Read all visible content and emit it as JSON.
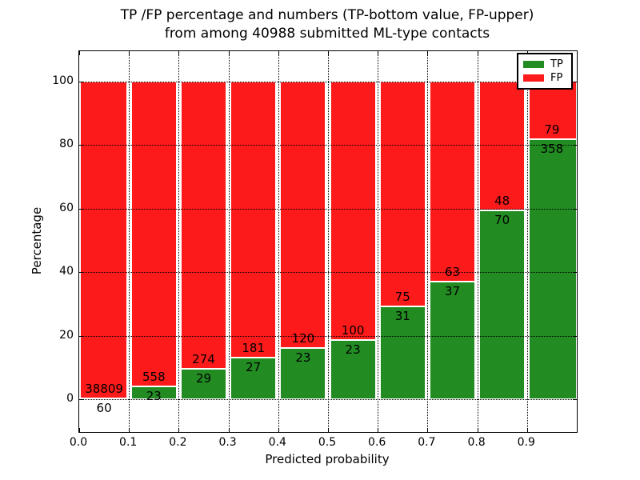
{
  "title": {
    "line1": "TP /FP percentage and numbers (TP-bottom value, FP-upper)",
    "line2": "from among 40988 submitted ML-type contacts"
  },
  "chart_data": {
    "type": "bar",
    "stacked": true,
    "normalized": "each bin stacks to 100%",
    "title": "TP /FP percentage and numbers (TP-bottom value, FP-upper) from among 40988 submitted ML-type contacts",
    "xlabel": "Predicted probability",
    "ylabel": "Percentage",
    "x_bin_starts": [
      0.0,
      0.1,
      0.2,
      0.3,
      0.4,
      0.5,
      0.6,
      0.7,
      0.8,
      0.9
    ],
    "x_tick_labels": [
      "0.0",
      "0.1",
      "0.2",
      "0.3",
      "0.4",
      "0.5",
      "0.6",
      "0.7",
      "0.8",
      "0.9"
    ],
    "y_ticks": [
      0,
      20,
      40,
      60,
      80,
      100
    ],
    "xlim": [
      0.0,
      1.0
    ],
    "ylim": [
      -11,
      109
    ],
    "grid": "dotted both axes, drawn over bars",
    "legend": {
      "position": "upper right",
      "entries": [
        "TP",
        "FP"
      ]
    },
    "series": [
      {
        "name": "TP",
        "color": "#228B22",
        "counts": [
          60,
          23,
          29,
          27,
          23,
          23,
          31,
          37,
          70,
          358
        ]
      },
      {
        "name": "FP",
        "color": "#FC1A1A",
        "counts": [
          38809,
          558,
          274,
          181,
          120,
          100,
          75,
          63,
          48,
          79
        ]
      }
    ],
    "tp_percent_of_bin": [
      0.15,
      3.96,
      9.57,
      12.98,
      16.08,
      18.7,
      29.25,
      37.0,
      59.32,
      81.92
    ],
    "total_contacts": 40988
  },
  "colors": {
    "tp_green": "#228B22",
    "fp_red": "#FC1A1A",
    "grid": "#000000",
    "background": "#FFFFFF"
  }
}
